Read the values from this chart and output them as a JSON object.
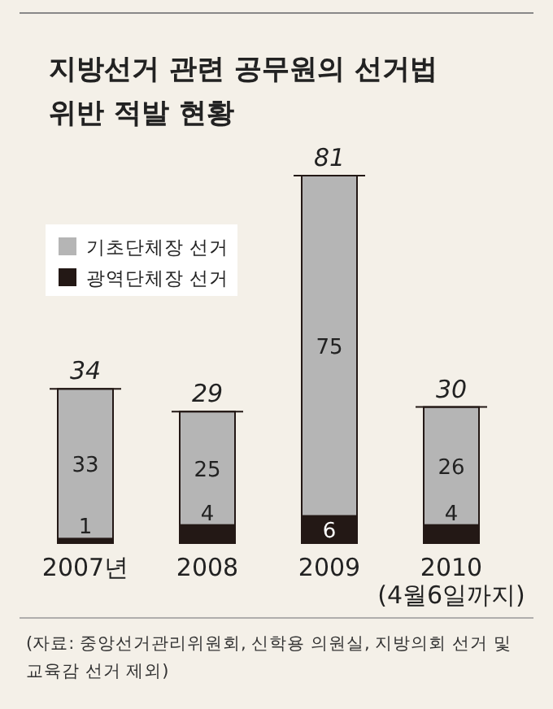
{
  "chart_data": {
    "type": "bar",
    "stacked": true,
    "title": "지방선거 관련 공무원의 선거법\n위반 적발 현황",
    "categories": [
      "2007년",
      "2008",
      "2009",
      "2010\n(4월6일까지)"
    ],
    "series": [
      {
        "name": "광역단체장 선거",
        "color": "#231815",
        "values": [
          1,
          4,
          6,
          4
        ]
      },
      {
        "name": "기초단체장 선거",
        "color": "#b5b5b5",
        "values": [
          33,
          25,
          75,
          26
        ]
      }
    ],
    "data_labels": true,
    "totals": [
      "34",
      "29",
      "81",
      "30"
    ],
    "legend": "top left",
    "annotations": [
      "(자료: 중앙선거관리위원회, 신학용 의원실, 지방의회 선거 및\n교육감 선거 제외)"
    ]
  }
}
